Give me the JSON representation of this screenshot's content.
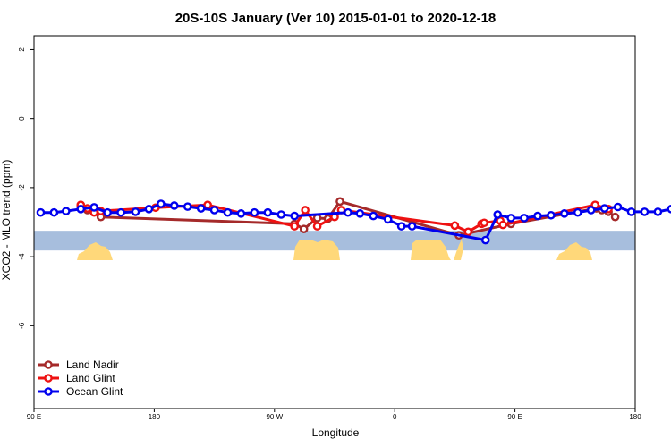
{
  "chart_data": {
    "type": "line",
    "title": "20S-10S January (Ver 10)   2015-01-01 to 2020-12-18",
    "xlabel": "Longitude",
    "ylabel": "XCO2 - MLO trend (ppm)",
    "xlim": [
      90,
      540
    ],
    "ylim": [
      -8.4,
      2.4
    ],
    "x_ticks": [
      {
        "value": 90,
        "label": "90 E"
      },
      {
        "value": 180,
        "label": "180"
      },
      {
        "value": 270,
        "label": "90 W"
      },
      {
        "value": 360,
        "label": "0"
      },
      {
        "value": 450,
        "label": "90 E"
      },
      {
        "value": 540,
        "label": "180"
      }
    ],
    "y_ticks": [
      {
        "value": 2,
        "label": "2"
      },
      {
        "value": 0,
        "label": "0"
      },
      {
        "value": -2,
        "label": "-2"
      },
      {
        "value": -4,
        "label": "-4"
      },
      {
        "value": -6,
        "label": "-6"
      }
    ],
    "grid": false,
    "legend_position": "bottom-left",
    "background_band": {
      "ocean_color": "#a7bedd",
      "land_color": "#ffd87a"
    },
    "series": [
      {
        "name": "Land Nadir",
        "color": "#a52a2a",
        "points": [
          [
            125,
            -2.55
          ],
          [
            130,
            -2.65
          ],
          [
            135,
            -2.7
          ],
          [
            140,
            -2.85
          ],
          [
            285,
            -3.05
          ],
          [
            292,
            -3.2
          ],
          [
            302,
            -2.88
          ],
          [
            310,
            -2.9
          ],
          [
            319,
            -2.4
          ],
          [
            408,
            -3.38
          ],
          [
            447,
            -3.05
          ],
          [
            511,
            -2.6
          ],
          [
            515,
            -2.65
          ],
          [
            520,
            -2.7
          ],
          [
            525,
            -2.85
          ]
        ]
      },
      {
        "name": "Land Glint",
        "color": "#ee1111",
        "points": [
          [
            125,
            -2.5
          ],
          [
            130,
            -2.6
          ],
          [
            135,
            -2.72
          ],
          [
            140,
            -2.68
          ],
          [
            181,
            -2.58
          ],
          [
            220,
            -2.5
          ],
          [
            285,
            -3.12
          ],
          [
            293,
            -2.65
          ],
          [
            302,
            -3.12
          ],
          [
            315,
            -2.85
          ],
          [
            320,
            -2.65
          ],
          [
            405,
            -3.1
          ],
          [
            415,
            -3.28
          ],
          [
            425,
            -3.05
          ],
          [
            427,
            -3.02
          ],
          [
            439,
            -2.96
          ],
          [
            441,
            -3.08
          ],
          [
            510,
            -2.5
          ],
          [
            520,
            -2.62
          ]
        ]
      },
      {
        "name": "Ocean Glint",
        "color": "#0000ee",
        "points": [
          [
            95,
            -2.72
          ],
          [
            105,
            -2.72
          ],
          [
            114,
            -2.68
          ],
          [
            125,
            -2.62
          ],
          [
            135,
            -2.57
          ],
          [
            145,
            -2.72
          ],
          [
            155,
            -2.72
          ],
          [
            166,
            -2.7
          ],
          [
            176,
            -2.62
          ],
          [
            185,
            -2.47
          ],
          [
            195,
            -2.52
          ],
          [
            205,
            -2.55
          ],
          [
            215,
            -2.6
          ],
          [
            225,
            -2.65
          ],
          [
            235,
            -2.72
          ],
          [
            245,
            -2.75
          ],
          [
            255,
            -2.72
          ],
          [
            265,
            -2.72
          ],
          [
            275,
            -2.78
          ],
          [
            285,
            -2.82
          ],
          [
            325,
            -2.72
          ],
          [
            334,
            -2.75
          ],
          [
            344,
            -2.82
          ],
          [
            355,
            -2.92
          ],
          [
            365,
            -3.12
          ],
          [
            373,
            -3.12
          ],
          [
            428,
            -3.52
          ],
          [
            437,
            -2.78
          ],
          [
            447,
            -2.88
          ],
          [
            457,
            -2.88
          ],
          [
            467,
            -2.82
          ],
          [
            477,
            -2.8
          ],
          [
            487,
            -2.75
          ],
          [
            497,
            -2.72
          ],
          [
            507,
            -2.65
          ],
          [
            517,
            -2.6
          ],
          [
            527,
            -2.56
          ],
          [
            537,
            -2.7
          ],
          [
            547,
            -2.7
          ],
          [
            557,
            -2.7
          ],
          [
            567,
            -2.62
          ]
        ]
      }
    ]
  }
}
